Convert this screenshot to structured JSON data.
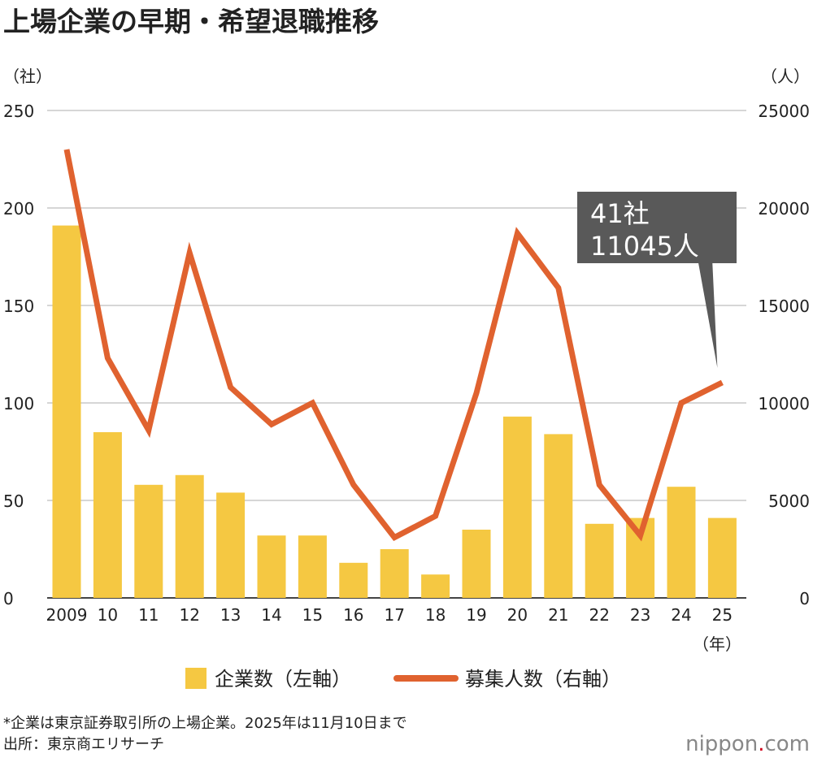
{
  "chart_data": {
    "type": "bar+line",
    "title": "上場企業の早期・希望退職推移",
    "left_unit": "（社）",
    "right_unit": "（人）",
    "x_unit": "（年）",
    "categories": [
      "2009",
      "10",
      "11",
      "12",
      "13",
      "14",
      "15",
      "16",
      "17",
      "18",
      "19",
      "20",
      "21",
      "22",
      "23",
      "24",
      "25"
    ],
    "left_ylim": [
      0,
      250
    ],
    "left_ticks": [
      "0",
      "50",
      "100",
      "150",
      "200",
      "250"
    ],
    "right_ylim": [
      0,
      25000
    ],
    "right_ticks": [
      "0",
      "5000",
      "10000",
      "15000",
      "20000",
      "25000"
    ],
    "grid": true,
    "legend_placement": "bottom",
    "series": [
      {
        "name": "企業数（左軸）",
        "type": "bar",
        "axis": "left",
        "color": "#f5c842",
        "values": [
          191,
          85,
          58,
          63,
          54,
          32,
          32,
          18,
          25,
          12,
          35,
          93,
          84,
          38,
          41,
          57,
          41
        ]
      },
      {
        "name": "募集人数（右軸）",
        "type": "line",
        "axis": "right",
        "color": "#e0622f",
        "values": [
          23000,
          12300,
          8600,
          17700,
          10800,
          8900,
          10000,
          5800,
          3100,
          4200,
          10500,
          18700,
          15900,
          5800,
          3200,
          10000,
          11045
        ]
      }
    ],
    "annotation": {
      "line1": "41社",
      "line2": "11045人",
      "category": "25",
      "bg": "#595959"
    }
  },
  "footnote": "*企業は東京証券取引所の上場企業。2025年は11月10日まで",
  "source": "出所：東京商エリサーチ",
  "logo": "nippon.com"
}
